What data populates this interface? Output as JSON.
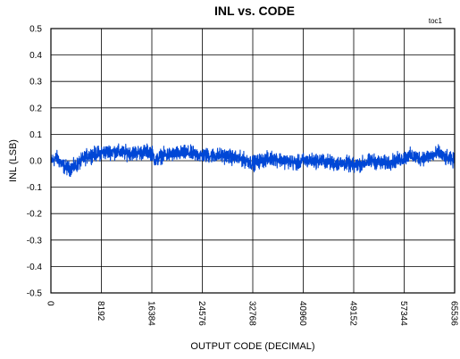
{
  "chart_data": {
    "type": "line",
    "title": "INL vs. CODE",
    "tag": "toc1",
    "xlabel": "OUTPUT CODE (DECIMAL)",
    "ylabel": "INL (LSB)",
    "xlim": [
      0,
      65536
    ],
    "ylim": [
      -0.5,
      0.5
    ],
    "x_ticks": [
      "0",
      "8192",
      "16384",
      "24576",
      "32768",
      "40960",
      "49152",
      "57344",
      "65536"
    ],
    "y_ticks": [
      "0.5",
      "0.4",
      "0.3",
      "0.2",
      "0.1",
      "0.0",
      "-0.1",
      "-0.2",
      "-0.3",
      "-0.4",
      "-0.5"
    ],
    "grid": true,
    "series_color": "#0047d6",
    "series": [
      {
        "x": [
          0,
          1000,
          2000,
          3000,
          4000,
          5000,
          6000,
          8192,
          10000,
          12000,
          14000,
          16000,
          16384,
          17000,
          18000,
          20000,
          22000,
          24576,
          26000,
          28000,
          30000,
          32000,
          32768,
          34000,
          36000,
          38000,
          40000,
          40960,
          42000,
          44000,
          46000,
          48000,
          49152,
          50000,
          52000,
          54000,
          56000,
          57344,
          58000,
          60000,
          62000,
          63000,
          64000,
          65536
        ],
        "y_mid": [
          0.0,
          0.01,
          -0.02,
          -0.03,
          -0.02,
          0.0,
          0.02,
          0.03,
          0.035,
          0.03,
          0.03,
          0.035,
          0.03,
          0.0,
          0.02,
          0.025,
          0.03,
          0.02,
          0.02,
          0.02,
          0.01,
          0.0,
          -0.01,
          0.0,
          0.01,
          0.0,
          -0.01,
          0.0,
          0.0,
          0.0,
          -0.01,
          -0.01,
          -0.02,
          -0.015,
          0.0,
          -0.01,
          0.0,
          0.01,
          0.02,
          0.01,
          0.02,
          0.03,
          0.01,
          0.0
        ],
        "band": 0.04
      }
    ]
  }
}
